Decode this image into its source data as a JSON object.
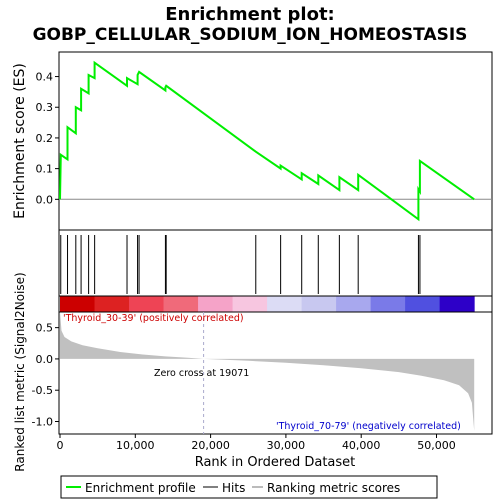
{
  "chart_data": {
    "type": "line",
    "title_line1": "Enrichment plot:",
    "title_line2": "GOBP_CELLULAR_SODIUM_ION_HOMEOSTASIS",
    "top_ylabel": "Enrichment score (ES)",
    "bottom_ylabel": "Ranked list metric (Signal2Noise)",
    "xlabel": "Rank in Ordered Dataset",
    "top_ylim": [
      -0.1,
      0.48
    ],
    "top_yticks": [
      0.0,
      0.1,
      0.2,
      0.3,
      0.4
    ],
    "top_ytick_labels": [
      "0.0",
      "0.1",
      "0.2",
      "0.3",
      "0.4"
    ],
    "bottom_ylim": [
      -1.2,
      0.75
    ],
    "bottom_yticks": [
      0.5,
      0.0,
      -0.5,
      -1.0
    ],
    "bottom_ytick_labels": [
      "0.5",
      "0.0",
      "-0.5",
      "-1.0"
    ],
    "xlim": [
      0,
      58000
    ],
    "xticks": [
      0,
      10000,
      20000,
      30000,
      40000,
      50000
    ],
    "xtick_labels": [
      "0",
      "10,000",
      "20,000",
      "30,000",
      "40,000",
      "50,000"
    ],
    "total_rank": 55000,
    "zero_cross": 19071,
    "zero_cross_label": "Zero cross at 19071",
    "positive_label": "'Thyroid_30-39' (positively correlated)",
    "negative_label": "'Thyroid_70-79' (negatively correlated)",
    "hits": [
      100,
      1000,
      2100,
      2800,
      3800,
      4600,
      8900,
      10300,
      10500,
      14000,
      14100,
      26000,
      29300,
      32100,
      34300,
      37100,
      39600,
      47600,
      47800
    ],
    "es_profile": [
      [
        0,
        0.0
      ],
      [
        100,
        0.145
      ],
      [
        1000,
        0.13
      ],
      [
        1000,
        0.235
      ],
      [
        2100,
        0.215
      ],
      [
        2100,
        0.3
      ],
      [
        2800,
        0.29
      ],
      [
        2800,
        0.36
      ],
      [
        3800,
        0.345
      ],
      [
        3800,
        0.405
      ],
      [
        4600,
        0.395
      ],
      [
        4600,
        0.445
      ],
      [
        8900,
        0.37
      ],
      [
        8900,
        0.395
      ],
      [
        10300,
        0.375
      ],
      [
        10300,
        0.405
      ],
      [
        10500,
        0.415
      ],
      [
        14000,
        0.355
      ],
      [
        14000,
        0.365
      ],
      [
        14100,
        0.37
      ],
      [
        26000,
        0.155
      ],
      [
        29300,
        0.1
      ],
      [
        29300,
        0.11
      ],
      [
        32100,
        0.065
      ],
      [
        32100,
        0.085
      ],
      [
        34300,
        0.05
      ],
      [
        34300,
        0.078
      ],
      [
        37100,
        0.03
      ],
      [
        37100,
        0.072
      ],
      [
        39600,
        0.03
      ],
      [
        39600,
        0.08
      ],
      [
        47600,
        -0.065
      ],
      [
        47600,
        0.033
      ],
      [
        47800,
        0.025
      ],
      [
        47800,
        0.125
      ],
      [
        55000,
        0.0
      ]
    ],
    "metric_curve": [
      [
        0,
        0.75
      ],
      [
        200,
        0.45
      ],
      [
        600,
        0.35
      ],
      [
        1500,
        0.28
      ],
      [
        3000,
        0.22
      ],
      [
        5000,
        0.17
      ],
      [
        8000,
        0.11
      ],
      [
        11000,
        0.07
      ],
      [
        14000,
        0.04
      ],
      [
        17000,
        0.02
      ],
      [
        19071,
        0.0
      ],
      [
        25000,
        -0.03
      ],
      [
        30000,
        -0.06
      ],
      [
        35000,
        -0.1
      ],
      [
        40000,
        -0.15
      ],
      [
        45000,
        -0.21
      ],
      [
        48000,
        -0.27
      ],
      [
        51000,
        -0.34
      ],
      [
        53000,
        -0.42
      ],
      [
        54200,
        -0.55
      ],
      [
        54700,
        -0.7
      ],
      [
        55000,
        -1.15
      ]
    ],
    "heatmap_colors": [
      "#cc0000",
      "#dd2222",
      "#ee4455",
      "#f06a7a",
      "#f5a3c8",
      "#f7c6e0",
      "#dcdcf5",
      "#c8c8f0",
      "#a8a8ee",
      "#7a7ae8",
      "#5050e0",
      "#2d00c8"
    ],
    "legend": [
      {
        "label": "Enrichment profile",
        "color": "#00ee00"
      },
      {
        "label": "Hits",
        "color": "#000000"
      },
      {
        "label": "Ranking metric scores",
        "color": "#bbbbbb"
      }
    ]
  }
}
